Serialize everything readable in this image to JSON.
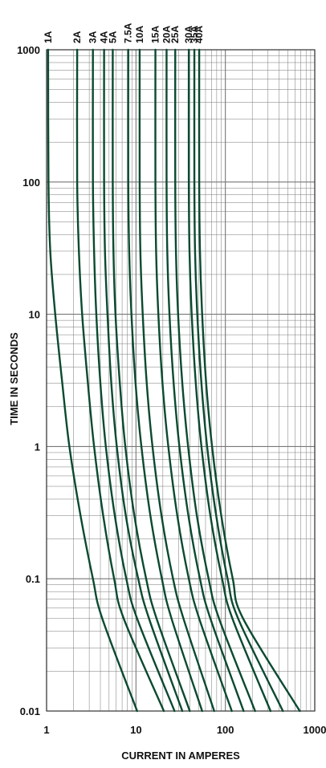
{
  "chart_data": {
    "type": "line",
    "title": "",
    "xlabel": "CURRENT IN AMPERES",
    "ylabel": "TIME IN SECONDS",
    "xscale": "log",
    "yscale": "log",
    "xlim": [
      1,
      1000
    ],
    "ylim": [
      0.01,
      1000
    ],
    "grid": true,
    "x_ticks": [
      "1",
      "10",
      "100",
      "1000"
    ],
    "y_ticks": [
      "0.01",
      "0.1",
      "1",
      "10",
      "100",
      "1000"
    ],
    "line_color": "#0b4a30",
    "grid_color": "#777777",
    "series": [
      {
        "name": "1A",
        "points": [
          [
            1.04,
            1000
          ],
          [
            1.05,
            100
          ],
          [
            1.1,
            30
          ],
          [
            1.25,
            10
          ],
          [
            1.5,
            3
          ],
          [
            1.8,
            1
          ],
          [
            2.4,
            0.3
          ],
          [
            3.3,
            0.1
          ],
          [
            4.2,
            0.05
          ],
          [
            10.3,
            0.01
          ]
        ]
      },
      {
        "name": "2A",
        "points": [
          [
            2.2,
            1000
          ],
          [
            2.2,
            100
          ],
          [
            2.3,
            30
          ],
          [
            2.5,
            10
          ],
          [
            2.9,
            3
          ],
          [
            3.4,
            1
          ],
          [
            4.3,
            0.3
          ],
          [
            5.7,
            0.1
          ],
          [
            7.3,
            0.05
          ],
          [
            20.5,
            0.01
          ]
        ]
      },
      {
        "name": "3A",
        "points": [
          [
            3.3,
            1000
          ],
          [
            3.3,
            100
          ],
          [
            3.4,
            30
          ],
          [
            3.6,
            10
          ],
          [
            4.0,
            3
          ],
          [
            4.6,
            1
          ],
          [
            5.8,
            0.3
          ],
          [
            7.8,
            0.1
          ],
          [
            10.3,
            0.05
          ],
          [
            27,
            0.01
          ]
        ]
      },
      {
        "name": "4A",
        "points": [
          [
            4.4,
            1000
          ],
          [
            4.4,
            100
          ],
          [
            4.5,
            30
          ],
          [
            4.8,
            10
          ],
          [
            5.3,
            3
          ],
          [
            6.1,
            1
          ],
          [
            7.7,
            0.3
          ],
          [
            10.6,
            0.1
          ],
          [
            14,
            0.05
          ],
          [
            33,
            0.01
          ]
        ]
      },
      {
        "name": "5A",
        "points": [
          [
            5.5,
            1000
          ],
          [
            5.5,
            100
          ],
          [
            5.6,
            30
          ],
          [
            5.9,
            10
          ],
          [
            6.6,
            3
          ],
          [
            7.6,
            1
          ],
          [
            9.6,
            0.3
          ],
          [
            13,
            0.1
          ],
          [
            17,
            0.05
          ],
          [
            40,
            0.01
          ]
        ]
      },
      {
        "name": "7.5A",
        "points": [
          [
            8.2,
            1000
          ],
          [
            8.2,
            100
          ],
          [
            8.4,
            30
          ],
          [
            8.9,
            10
          ],
          [
            9.9,
            3
          ],
          [
            11.5,
            1
          ],
          [
            14.5,
            0.3
          ],
          [
            19.5,
            0.1
          ],
          [
            25,
            0.05
          ],
          [
            55,
            0.01
          ]
        ]
      },
      {
        "name": "10A",
        "points": [
          [
            11,
            1000
          ],
          [
            11,
            100
          ],
          [
            11.2,
            30
          ],
          [
            11.9,
            10
          ],
          [
            13.2,
            3
          ],
          [
            15.3,
            1
          ],
          [
            19.3,
            0.3
          ],
          [
            26,
            0.1
          ],
          [
            34,
            0.05
          ],
          [
            75,
            0.01
          ]
        ]
      },
      {
        "name": "15A",
        "points": [
          [
            16.5,
            1000
          ],
          [
            16.5,
            100
          ],
          [
            16.8,
            30
          ],
          [
            17.8,
            10
          ],
          [
            19.8,
            3
          ],
          [
            23,
            1
          ],
          [
            29,
            0.3
          ],
          [
            39,
            0.1
          ],
          [
            51,
            0.05
          ],
          [
            118,
            0.01
          ]
        ]
      },
      {
        "name": "20A",
        "points": [
          [
            22,
            1000
          ],
          [
            22,
            100
          ],
          [
            22.4,
            30
          ],
          [
            23.7,
            10
          ],
          [
            26.4,
            3
          ],
          [
            30.6,
            1
          ],
          [
            38.6,
            0.3
          ],
          [
            52,
            0.1
          ],
          [
            68,
            0.05
          ],
          [
            160,
            0.01
          ]
        ]
      },
      {
        "name": "25A",
        "points": [
          [
            27.5,
            1000
          ],
          [
            27.5,
            100
          ],
          [
            28,
            30
          ],
          [
            29.6,
            10
          ],
          [
            33,
            3
          ],
          [
            38.3,
            1
          ],
          [
            48,
            0.3
          ],
          [
            65,
            0.1
          ],
          [
            85,
            0.05
          ],
          [
            215,
            0.01
          ]
        ]
      },
      {
        "name": "30A",
        "points": [
          [
            39,
            1000
          ],
          [
            39,
            100
          ],
          [
            39.7,
            30
          ],
          [
            42,
            10
          ],
          [
            46.7,
            3
          ],
          [
            54,
            1
          ],
          [
            68,
            0.3
          ],
          [
            92,
            0.1
          ],
          [
            120,
            0.05
          ],
          [
            320,
            0.01
          ]
        ]
      },
      {
        "name": "35A",
        "points": [
          [
            45,
            1000
          ],
          [
            45,
            100
          ],
          [
            45.8,
            30
          ],
          [
            48.5,
            10
          ],
          [
            54,
            3
          ],
          [
            62.5,
            1
          ],
          [
            79,
            0.3
          ],
          [
            106,
            0.1
          ],
          [
            139,
            0.05
          ],
          [
            440,
            0.01
          ]
        ]
      },
      {
        "name": "40A",
        "points": [
          [
            51,
            1000
          ],
          [
            51,
            100
          ],
          [
            52,
            30
          ],
          [
            55,
            10
          ],
          [
            61,
            3
          ],
          [
            71,
            1
          ],
          [
            90,
            0.3
          ],
          [
            121,
            0.1
          ],
          [
            158,
            0.05
          ],
          [
            680,
            0.01
          ]
        ]
      }
    ]
  }
}
